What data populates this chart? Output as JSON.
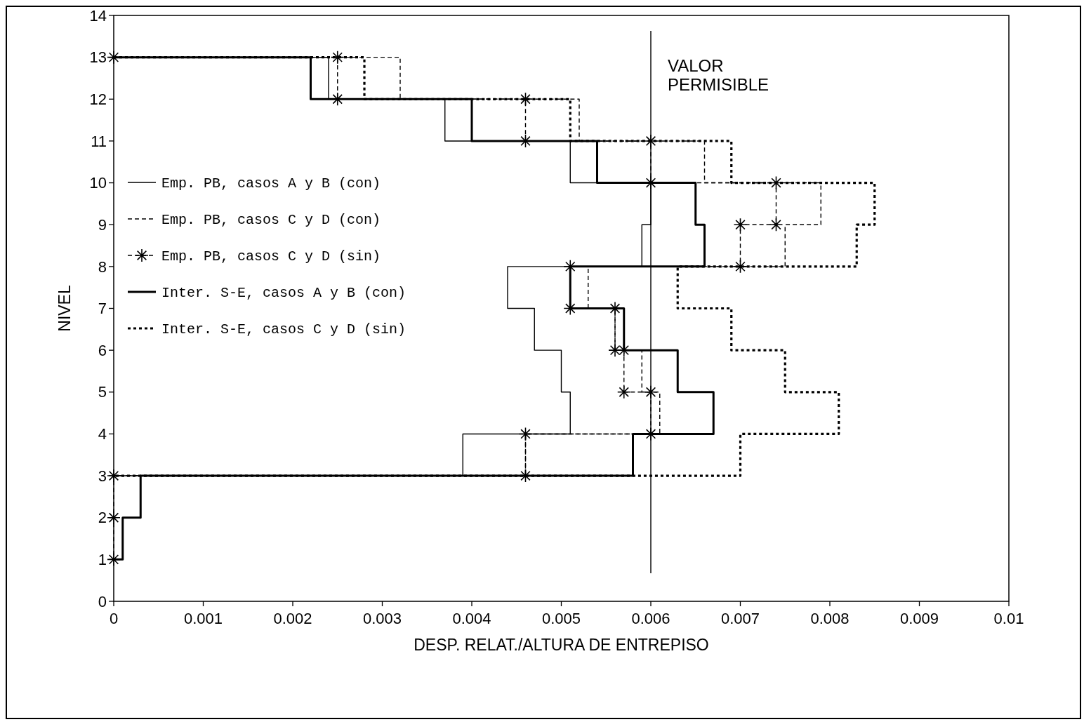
{
  "chart_data": {
    "type": "line",
    "xlabel": "DESP. RELAT./ALTURA DE ENTREPISO",
    "ylabel": "NIVEL",
    "xlim": [
      0,
      0.01
    ],
    "xticks": [
      0,
      0.001,
      0.002,
      0.003,
      0.004,
      0.005,
      0.006,
      0.007,
      0.008,
      0.009,
      0.01
    ],
    "ylim": [
      0,
      14
    ],
    "yticks": [
      0,
      1,
      2,
      3,
      4,
      5,
      6,
      7,
      8,
      9,
      10,
      11,
      12,
      13,
      14
    ],
    "grid": false,
    "legend": "left",
    "series": [
      {
        "name": "Emp. PB, casos A y B (con)",
        "color": "#000000",
        "line_style": "solid",
        "marker": "none",
        "x": [
          0,
          0.0024,
          0.0024,
          0.0037,
          0.0037,
          0.0051,
          0.0051,
          0.006,
          0.006,
          0.0059,
          0.0059,
          0.0044,
          0.0044,
          0.0047,
          0.0047,
          0.005,
          0.005,
          0.0051,
          0.0051,
          0.0039,
          0.0039,
          0
        ],
        "values": [
          13,
          13,
          12,
          12,
          11,
          11,
          10,
          10,
          9,
          9,
          8,
          8,
          7,
          7,
          6,
          6,
          5,
          5,
          4,
          4,
          3,
          3
        ]
      },
      {
        "name": "Emp. PB, casos C y D (con)",
        "color": "#000000",
        "line_style": "dashed",
        "marker": "none",
        "x": [
          0,
          0.0032,
          0.0032,
          0.0052,
          0.0052,
          0.0066,
          0.0066,
          0.0079,
          0.0079,
          0.0075,
          0.0075,
          0.0053,
          0.0053,
          0.0056,
          0.0056,
          0.0059,
          0.0059,
          0.0061,
          0.0061,
          0.0046,
          0.0046,
          0
        ],
        "values": [
          13,
          13,
          12,
          12,
          11,
          11,
          10,
          10,
          9,
          9,
          8,
          8,
          7,
          7,
          6,
          6,
          5,
          5,
          4,
          4,
          3,
          3
        ]
      },
      {
        "name": "Emp. PB, casos C y D (sin)",
        "color": "#000000",
        "line_style": "dashed",
        "marker": "cross",
        "x": [
          0,
          0.0025,
          0.0025,
          0.0046,
          0.0046,
          0.006,
          0.006,
          0.0074,
          0.0074,
          0.007,
          0.007,
          0.0051,
          0.0051,
          0.0056,
          0.0056,
          0.0057,
          0.0057,
          0.006,
          0.006,
          0.0046,
          0.0046,
          0,
          0,
          0
        ],
        "values": [
          13,
          13,
          12,
          12,
          11,
          11,
          10,
          10,
          9,
          9,
          8,
          8,
          7,
          7,
          6,
          6,
          5,
          5,
          4,
          4,
          3,
          3,
          2,
          1
        ]
      },
      {
        "name": "Inter. S-E, casos A y B (con)",
        "color": "#000000",
        "line_style": "solid",
        "marker": "none",
        "x": [
          0,
          0.0022,
          0.0022,
          0.004,
          0.004,
          0.0054,
          0.0054,
          0.0065,
          0.0065,
          0.0066,
          0.0066,
          0.0051,
          0.0051,
          0.0057,
          0.0057,
          0.0063,
          0.0063,
          0.0067,
          0.0067,
          0.0058,
          0.0058,
          0.0003,
          0.0003,
          0.0001,
          0.0001,
          0
        ],
        "values": [
          13,
          13,
          12,
          12,
          11,
          11,
          10,
          10,
          9,
          9,
          8,
          8,
          7,
          7,
          6,
          6,
          5,
          5,
          4,
          4,
          3,
          3,
          2,
          2,
          1,
          1
        ]
      },
      {
        "name": "Inter. S-E, casos C y D (sin)",
        "color": "#000000",
        "line_style": "dotted",
        "marker": "none",
        "x": [
          0,
          0.0028,
          0.0028,
          0.0051,
          0.0051,
          0.0069,
          0.0069,
          0.0085,
          0.0085,
          0.0083,
          0.0083,
          0.0063,
          0.0063,
          0.0069,
          0.0069,
          0.0075,
          0.0075,
          0.0081,
          0.0081,
          0.007,
          0.007,
          0
        ],
        "values": [
          13,
          13,
          12,
          12,
          11,
          11,
          10,
          10,
          9,
          9,
          8,
          8,
          7,
          7,
          6,
          6,
          5,
          5,
          4,
          4,
          3,
          3
        ]
      }
    ],
    "ref_lines": [
      {
        "axis": "x",
        "value": 0.006,
        "label": "VALOR PERMISIBLE",
        "color": "#000000"
      }
    ]
  }
}
